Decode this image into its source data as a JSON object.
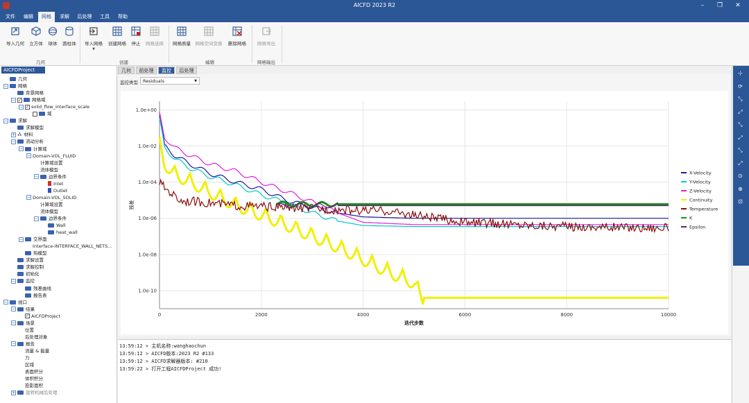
{
  "window": {
    "title": "AICFD 2023 R2"
  },
  "menu": [
    "文件",
    "编辑",
    "网格",
    "求解",
    "后处理",
    "工具",
    "帮助"
  ],
  "ribbon": {
    "buttons": [
      {
        "label": "导入几何",
        "icon": "import-geometry-icon"
      },
      {
        "label": "立方体",
        "icon": "cube-icon"
      },
      {
        "label": "球体",
        "icon": "sphere-icon"
      },
      {
        "label": "圆柱体",
        "icon": "cylinder-icon"
      },
      {
        "label": "导入网格",
        "icon": "import-mesh-icon"
      },
      {
        "label": "创建网格",
        "icon": "create-mesh-icon"
      },
      {
        "label": "停止",
        "icon": "stop-icon"
      },
      {
        "label": "网格选择",
        "icon": "mesh-select-icon"
      },
      {
        "label": "网格质量",
        "icon": "mesh-quality-icon"
      },
      {
        "label": "网格空间变换",
        "icon": "mesh-transform-icon"
      },
      {
        "label": "删除网格",
        "icon": "delete-mesh-icon"
      },
      {
        "label": "网格导出",
        "icon": "mesh-export-icon"
      }
    ],
    "groups": [
      "几何",
      "创建",
      "编辑",
      "网格输出"
    ]
  },
  "project": {
    "header": "AICFDProject"
  },
  "tree": [
    {
      "label": "几何",
      "lvl": 0,
      "exp": "",
      "fold": true
    },
    {
      "label": "网格",
      "lvl": 0,
      "exp": "-",
      "fold": true
    },
    {
      "label": "背景网格",
      "lvl": 1,
      "exp": "",
      "fold": true
    },
    {
      "label": "网格域",
      "lvl": 1,
      "exp": "-",
      "chk": "✓",
      "fold": true
    },
    {
      "label": "solid_flow_interface_scale",
      "lvl": 2,
      "exp": "-",
      "chk": "✓"
    },
    {
      "label": "域",
      "lvl": 3,
      "exp": "",
      "chk": " ",
      "fold": true
    },
    {
      "label": "求解",
      "lvl": 0,
      "exp": "-",
      "fold": true
    },
    {
      "label": "求解模型",
      "lvl": 1,
      "exp": "",
      "fold": true
    },
    {
      "label": "材料",
      "lvl": 1,
      "exp": "+",
      "icon": "⁂"
    },
    {
      "label": "流动分析",
      "lvl": 1,
      "exp": "-",
      "fold": true
    },
    {
      "label": "计算域",
      "lvl": 2,
      "exp": "-",
      "fold": true
    },
    {
      "label": "Domain-VOL_FLUID",
      "lvl": 3,
      "exp": "-"
    },
    {
      "label": "计算域设置",
      "lvl": 4,
      "exp": ""
    },
    {
      "label": "流体模型",
      "lvl": 4,
      "exp": ""
    },
    {
      "label": "边界条件",
      "lvl": 4,
      "exp": "-",
      "fold": true
    },
    {
      "label": "Inlet",
      "lvl": 5,
      "exp": "",
      "dot": "#d03030"
    },
    {
      "label": "Outlet",
      "lvl": 5,
      "exp": "",
      "dot": "#3050c0"
    },
    {
      "label": "Domain-VOL_SOLID",
      "lvl": 3,
      "exp": "-"
    },
    {
      "label": "计算域设置",
      "lvl": 4,
      "exp": ""
    },
    {
      "label": "流体模型",
      "lvl": 4,
      "exp": ""
    },
    {
      "label": "边界条件",
      "lvl": 4,
      "exp": "-",
      "fold": true
    },
    {
      "label": "Wall",
      "lvl": 5,
      "exp": "",
      "fold": true
    },
    {
      "label": "heat_wall",
      "lvl": 5,
      "exp": "",
      "fold": true
    },
    {
      "label": "交界面",
      "lvl": 2,
      "exp": "-",
      "fold": true
    },
    {
      "label": "Interface-INTERFACE_WALL_NETS...",
      "lvl": 3,
      "exp": ""
    },
    {
      "label": "热模型",
      "lvl": 2,
      "exp": "",
      "fold": true
    },
    {
      "label": "求解设置",
      "lvl": 1,
      "exp": "",
      "fold": true
    },
    {
      "label": "求解控制",
      "lvl": 1,
      "exp": "",
      "fold": true
    },
    {
      "label": "初始化",
      "lvl": 1,
      "exp": "",
      "fold": true
    },
    {
      "label": "监控",
      "lvl": 1,
      "exp": "-",
      "fold": true
    },
    {
      "label": "残差曲线",
      "lvl": 2,
      "exp": "",
      "fold": true
    },
    {
      "label": "报告表",
      "lvl": 2,
      "exp": "",
      "fold": true
    },
    {
      "label": "视口",
      "lvl": 0,
      "exp": "-",
      "fold": true
    },
    {
      "label": "结果",
      "lvl": 1,
      "exp": "-",
      "fold": true
    },
    {
      "label": "AICFDProject",
      "lvl": 2,
      "exp": "",
      "chk": "✓"
    },
    {
      "label": "场景",
      "lvl": 1,
      "exp": "-",
      "fold": true
    },
    {
      "label": "位置",
      "lvl": 2,
      "exp": ""
    },
    {
      "label": "后处理对象",
      "lvl": 2,
      "exp": ""
    },
    {
      "label": "报告",
      "lvl": 1,
      "exp": "-",
      "fold": true
    },
    {
      "label": "流量 & 能量",
      "lvl": 2,
      "exp": ""
    },
    {
      "label": "力",
      "lvl": 2,
      "exp": ""
    },
    {
      "label": "区域",
      "lvl": 2,
      "exp": ""
    },
    {
      "label": "表面积分",
      "lvl": 2,
      "exp": ""
    },
    {
      "label": "体积积分",
      "lvl": 2,
      "exp": ""
    },
    {
      "label": "投影面积",
      "lvl": 2,
      "exp": ""
    },
    {
      "label": "旋转机械后处理",
      "lvl": 1,
      "exp": "+",
      "fold": true,
      "dim": true
    }
  ],
  "tabs": [
    "几何",
    "前处理",
    "监控",
    "后处理"
  ],
  "active_tab": 2,
  "monitor": {
    "type_label": "监控类型",
    "type_value": "Residuals"
  },
  "chart_data": {
    "type": "line",
    "xlabel": "迭代步数",
    "ylabel": "残差",
    "xlim": [
      0,
      10000
    ],
    "ylim": [
      1e-11,
      3.0
    ],
    "yscale": "log",
    "xticks": [
      "0",
      "2000",
      "4000",
      "6000",
      "8000",
      "10000"
    ],
    "yticks": [
      "1.0e+00",
      "1.0e-02",
      "1.0e-04",
      "1.0e-06",
      "1.0e-08",
      "1.0e-10"
    ],
    "grid": true,
    "legend_position": "right",
    "series": [
      {
        "name": "X-Velocity",
        "color": "#1a1a9c",
        "x": [
          0,
          100,
          300,
          600,
          1000,
          1500,
          2000,
          2500,
          3000,
          3500,
          4000,
          5000,
          10000
        ],
        "y": [
          0.5,
          0.01,
          0.003,
          0.001,
          0.0003,
          0.0001,
          4e-05,
          1e-05,
          4e-06,
          2e-06,
          1.2e-06,
          1e-06,
          1e-06
        ]
      },
      {
        "name": "Y-Velocity",
        "color": "#00c8c8",
        "x": [
          0,
          100,
          300,
          600,
          1000,
          1500,
          2000,
          2500,
          3000,
          3500,
          4000,
          5000,
          10000
        ],
        "y": [
          0.3,
          0.008,
          0.002,
          0.0006,
          0.0002,
          7e-05,
          2e-05,
          7e-06,
          2e-06,
          7e-07,
          4e-07,
          3.5e-07,
          3.5e-07
        ]
      },
      {
        "name": "Z-Velocity",
        "color": "#e020e0",
        "x": [
          0,
          100,
          300,
          600,
          1000,
          1500,
          2000,
          2500,
          3000,
          3500,
          4000,
          5000,
          10000
        ],
        "y": [
          0.6,
          0.03,
          0.008,
          0.003,
          0.001,
          0.0004,
          0.0001,
          3e-05,
          8e-06,
          2e-06,
          6e-07,
          4.5e-07,
          4.5e-07
        ]
      },
      {
        "name": "Continuity",
        "color": "#f0f000",
        "x": [
          0,
          100,
          300,
          600,
          1000,
          1500,
          2000,
          2500,
          3000,
          3500,
          4000,
          4500,
          5000,
          5200,
          10000
        ],
        "y": [
          0.02,
          0.002,
          0.0005,
          0.0002,
          5e-05,
          1e-05,
          3e-06,
          8e-07,
          2e-07,
          5e-08,
          1e-08,
          2e-09,
          5e-10,
          4e-11,
          4e-11
        ]
      },
      {
        "name": "Temperature",
        "color": "#8b0a0a",
        "x": [
          0,
          100,
          200,
          400,
          800,
          1500,
          2500,
          3500,
          4500,
          5000,
          6000,
          8000,
          10000
        ],
        "y": [
          0.0001,
          5e-05,
          3e-05,
          1e-05,
          8e-06,
          5e-06,
          4e-06,
          3e-06,
          2.5e-06,
          1.5e-06,
          6e-07,
          3.5e-07,
          3e-07
        ]
      },
      {
        "name": "K",
        "color": "#1a8c1a",
        "x": [
          2300,
          2500,
          3000,
          4000,
          5000,
          10000
        ],
        "y": [
          7e-06,
          6e-06,
          6e-06,
          6e-06,
          6e-06,
          6e-06
        ]
      },
      {
        "name": "Epsilon",
        "color": "#6a1a8c",
        "x": [
          2300,
          10000
        ],
        "y": [
          5e-06,
          5e-06
        ]
      }
    ]
  },
  "console": [
    "13:59:12 > 主机名称:wanghaochun",
    "13:59:12 > AICFD版本:2023 R2 #133",
    "13:59:12 > AICFD求解器版本: #210",
    "13:59:22 > 打开工程AICFDProject 成功!"
  ],
  "right_tools": [
    "axis-view-icon",
    "rotate-icon",
    "view-x-icon",
    "view-neg-x-icon",
    "view-y-icon",
    "view-neg-y-icon",
    "view-z-icon",
    "view-neg-z-icon",
    "zoom-fit-icon",
    "zoom-in-icon",
    "zoom-box-icon",
    "ruler-icon",
    "axes-icon",
    "palette-icon",
    "camera-icon"
  ]
}
